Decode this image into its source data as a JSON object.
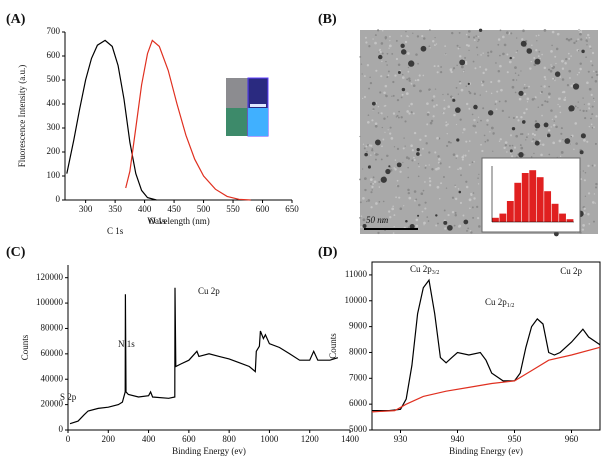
{
  "chart_data": [
    {
      "type": "line",
      "label": "(A)",
      "xlabel": "Wavelength (nm)",
      "ylabel": "Fluorescence Intensity (a.u.)",
      "xlim": [
        265,
        650
      ],
      "xticks": [
        300,
        350,
        400,
        450,
        500,
        550,
        600,
        650
      ],
      "ylim": [
        0,
        700
      ],
      "yticks": [
        0,
        100,
        200,
        300,
        400,
        500,
        600,
        700
      ],
      "series": [
        {
          "color": "#000000",
          "x": [
            268,
            280,
            290,
            300,
            310,
            320,
            333,
            345,
            355,
            365,
            375,
            385,
            395,
            405,
            420
          ],
          "values": [
            110,
            250,
            380,
            500,
            590,
            645,
            665,
            640,
            560,
            420,
            240,
            110,
            40,
            10,
            0
          ]
        },
        {
          "color": "#e03020",
          "x": [
            368,
            375,
            385,
            395,
            405,
            413,
            425,
            440,
            455,
            470,
            485,
            500,
            520,
            540,
            560,
            580
          ],
          "values": [
            50,
            120,
            300,
            480,
            610,
            665,
            640,
            540,
            400,
            270,
            170,
            100,
            45,
            15,
            3,
            0
          ]
        }
      ]
    },
    {
      "type": "image",
      "label": "(B)",
      "scale_bar_label": "50 nm"
    },
    {
      "type": "bar",
      "categories": [
        null,
        null,
        null,
        null,
        null,
        null,
        null,
        null,
        null,
        null,
        null
      ],
      "values": [
        0.3,
        0.6,
        1.5,
        2.8,
        3.5,
        3.7,
        3.2,
        2.2,
        1.3,
        0.6,
        0.2
      ],
      "color": "#e02020",
      "ylim": [
        0,
        4
      ]
    },
    {
      "type": "line",
      "label": "(C)",
      "xlabel": "Binding Energy (ev)",
      "ylabel": "Counts",
      "xlim": [
        0,
        1400
      ],
      "xticks": [
        0,
        200,
        400,
        600,
        800,
        1000,
        1200,
        1400
      ],
      "ylim": [
        0,
        130000
      ],
      "yticks": [
        0,
        20000,
        40000,
        60000,
        80000,
        100000,
        120000
      ],
      "series": [
        {
          "color": "#000000",
          "x": [
            10,
            50,
            80,
            100,
            150,
            200,
            250,
            270,
            284,
            285,
            288,
            300,
            350,
            400,
            410,
            420,
            500,
            530,
            531,
            535,
            560,
            600,
            640,
            650,
            700,
            750,
            800,
            850,
            900,
            930,
            935,
            950,
            955,
            970,
            980,
            1000,
            1050,
            1100,
            1150,
            1200,
            1220,
            1240,
            1300,
            1340
          ],
          "values": [
            5000,
            7000,
            12000,
            15000,
            17000,
            18000,
            20000,
            22000,
            30000,
            107000,
            30000,
            28000,
            26000,
            27000,
            30000,
            26000,
            25000,
            26000,
            112000,
            50000,
            52000,
            55000,
            62000,
            58000,
            60000,
            58000,
            56000,
            53000,
            50000,
            46000,
            62000,
            66000,
            78000,
            72000,
            75000,
            68000,
            65000,
            60000,
            55000,
            55000,
            62000,
            55000,
            55000,
            57000
          ]
        }
      ],
      "annotations": [
        {
          "text": "S 2p"
        },
        {
          "text": "C 1s"
        },
        {
          "text": "N 1s"
        },
        {
          "text": "O 1s"
        },
        {
          "text": "Cu 2p"
        }
      ]
    },
    {
      "type": "line",
      "label": "(D)",
      "title": "Cu 2p",
      "xlabel": "Binding Energy (ev)",
      "ylabel": "Counts",
      "xlim": [
        925,
        965
      ],
      "xticks": [
        930,
        940,
        950,
        960
      ],
      "ylim": [
        5000,
        11500
      ],
      "yticks": [
        5000,
        6000,
        7000,
        8000,
        9000,
        10000,
        11000
      ],
      "series": [
        {
          "color": "#000000",
          "x": [
            925,
            928,
            930,
            931,
            932,
            933,
            934,
            935,
            936,
            937,
            938,
            939,
            940,
            942,
            944,
            945,
            946,
            948,
            950,
            951,
            952,
            953,
            954,
            955,
            956,
            957,
            958,
            960,
            962,
            963,
            965
          ],
          "values": [
            5750,
            5750,
            5800,
            6200,
            7500,
            9500,
            10500,
            10800,
            9500,
            7800,
            7600,
            7800,
            8000,
            7900,
            8000,
            7700,
            7200,
            6900,
            6900,
            7200,
            8200,
            9000,
            9300,
            9100,
            8000,
            7900,
            8000,
            8400,
            8900,
            8600,
            8300
          ]
        },
        {
          "color": "#e03020",
          "x": [
            925,
            929,
            931,
            934,
            938,
            942,
            946,
            950,
            953,
            956,
            960,
            965
          ],
          "values": [
            5700,
            5750,
            6000,
            6300,
            6500,
            6650,
            6800,
            6900,
            7300,
            7700,
            7900,
            8200
          ]
        }
      ],
      "annotations": [
        {
          "text": "Cu 2p",
          "sub": "3/2"
        },
        {
          "text": "Cu 2p",
          "sub": "1/2"
        }
      ]
    }
  ]
}
